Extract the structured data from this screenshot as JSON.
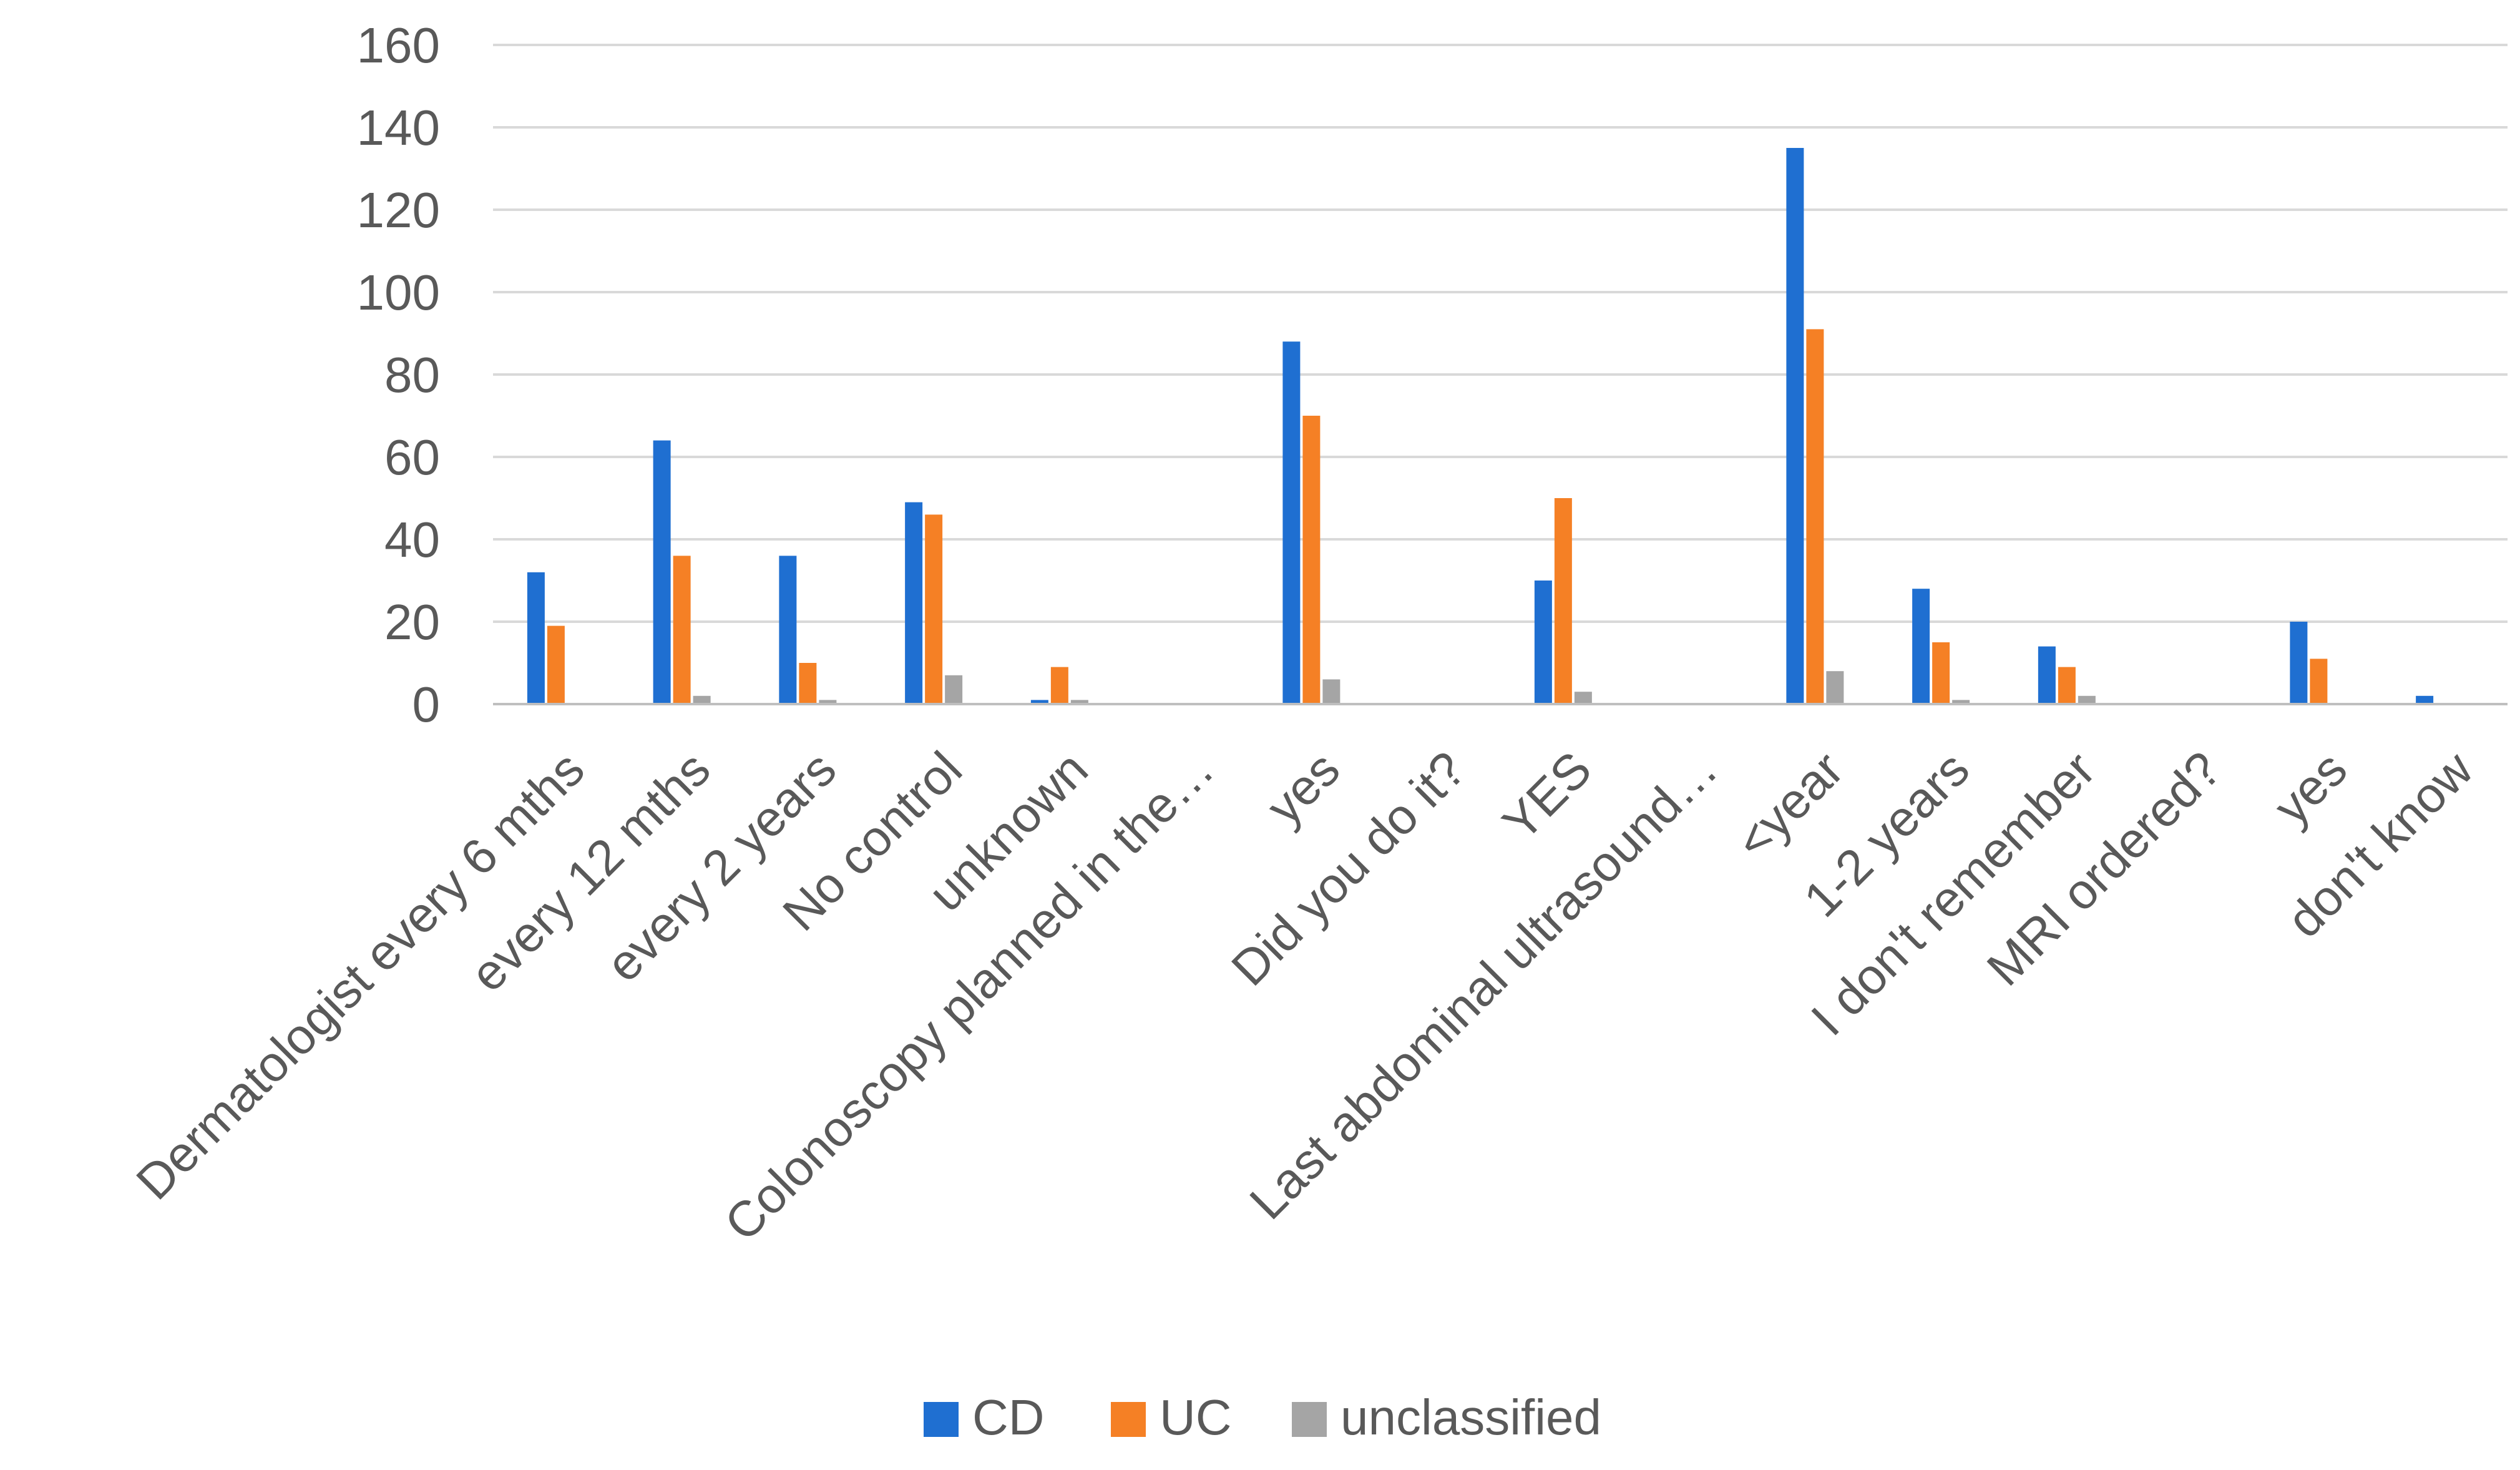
{
  "chart_data": {
    "type": "bar",
    "title": "",
    "xlabel": "",
    "ylabel": "",
    "ylim": [
      0,
      160
    ],
    "yticks": [
      0,
      20,
      40,
      60,
      80,
      100,
      120,
      140,
      160
    ],
    "grid": true,
    "legend_position": "bottom",
    "categories": [
      "Dermatologist every 6 mths",
      "every  12 mths",
      "every 2 years",
      "No control",
      "unknown",
      "Colonoscopy planned in the…",
      "yes",
      "Did you do  it?",
      "YES",
      "Last abdominal ultrasound…",
      "<year",
      "1-2 years",
      "I don't remember",
      "MRI ordered?",
      "yes",
      "don't know"
    ],
    "series": [
      {
        "name": "CD",
        "color": "#1f6fd1",
        "values": [
          32,
          64,
          36,
          49,
          1,
          0,
          88,
          0,
          30,
          0,
          135,
          28,
          14,
          0,
          20,
          2
        ]
      },
      {
        "name": "UC",
        "color": "#f58025",
        "values": [
          19,
          36,
          10,
          46,
          9,
          0,
          70,
          0,
          50,
          0,
          91,
          15,
          9,
          0,
          11,
          0
        ]
      },
      {
        "name": "unclassified",
        "color": "#a5a5a5",
        "values": [
          0,
          2,
          1,
          7,
          1,
          0,
          6,
          0,
          3,
          0,
          8,
          1,
          2,
          0,
          0,
          0
        ]
      }
    ]
  }
}
